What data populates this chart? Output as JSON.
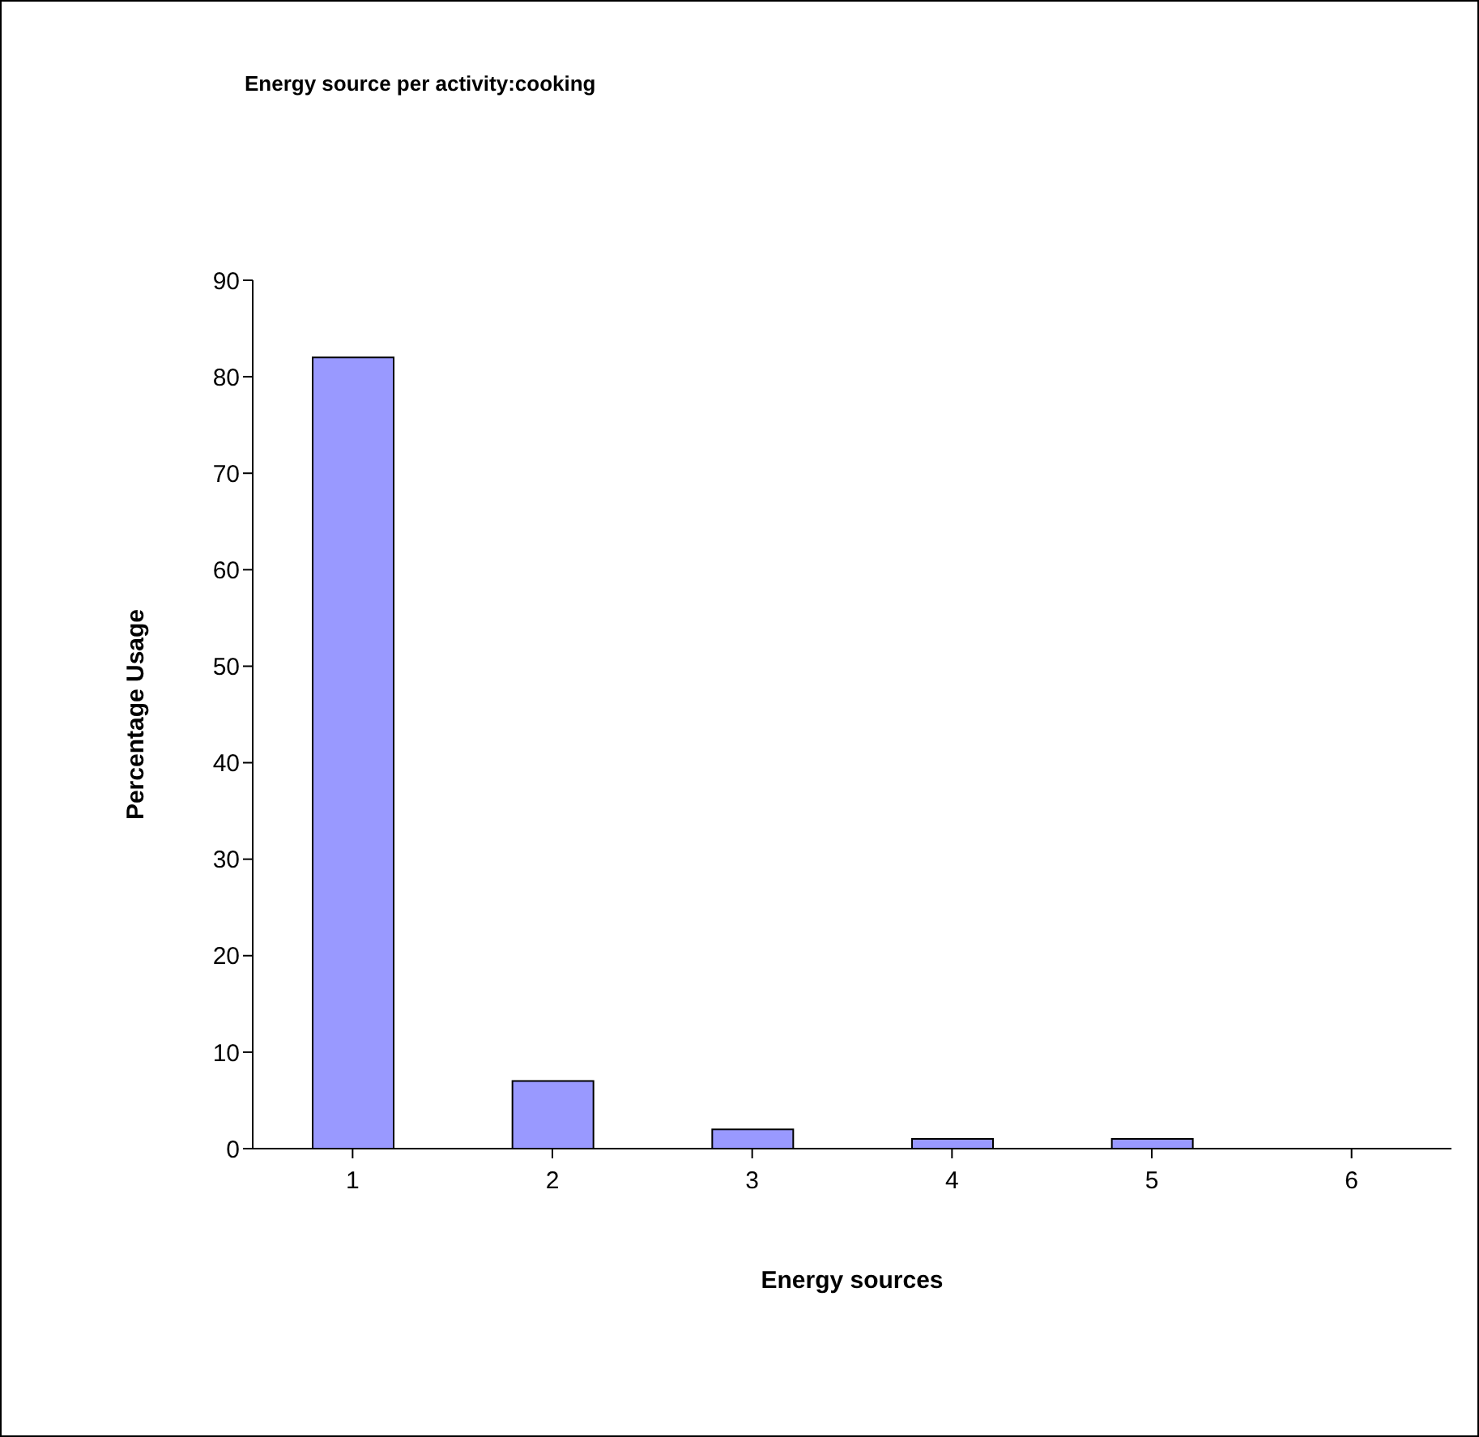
{
  "chart_data": {
    "type": "bar",
    "title": "Energy source per activity:cooking",
    "xlabel": "Energy sources",
    "ylabel": "Percentage Usage",
    "categories": [
      "1",
      "2",
      "3",
      "4",
      "5",
      "6"
    ],
    "values": [
      82,
      7,
      2,
      1,
      1,
      0
    ],
    "color": "#9999ff",
    "ylim": [
      0,
      90
    ],
    "yticks": [
      0,
      10,
      20,
      30,
      40,
      50,
      60,
      70,
      80,
      90
    ],
    "grid": false,
    "legend": false
  }
}
